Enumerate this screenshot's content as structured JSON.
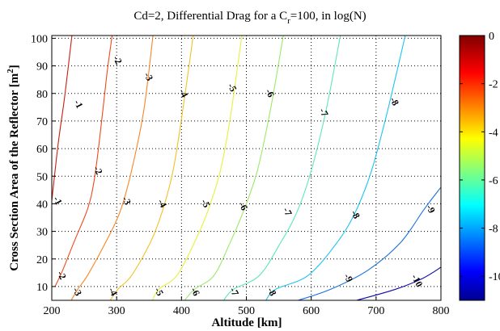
{
  "chart_data": {
    "type": "contour",
    "title": {
      "main": "Cd=2, Differential Drag for a C",
      "sub": "r",
      "rest": "=100, in log(N)"
    },
    "xlabel": "Altitude [km]",
    "ylabel": {
      "main": "Cross Section Area of the Reflector [m",
      "sup": "2",
      "end": "]"
    },
    "xlim": [
      200,
      800
    ],
    "ylim": [
      5,
      101
    ],
    "xticks": [
      200,
      300,
      400,
      500,
      600,
      700,
      800
    ],
    "yticks": [
      10,
      20,
      30,
      40,
      50,
      60,
      70,
      80,
      90,
      100
    ],
    "grid": true,
    "colormap": "jet",
    "colorbar": {
      "range": [
        -11,
        0
      ],
      "ticks": [
        0,
        -2,
        -4,
        -6,
        -8,
        -10
      ]
    },
    "series": [
      {
        "level": -1,
        "color": "#c81e0f",
        "points": [
          [
            200,
            41
          ],
          [
            210,
            62
          ],
          [
            220,
            79
          ],
          [
            231,
            101
          ]
        ],
        "labels": [
          {
            "text": "-1",
            "x": 208,
            "y": 41
          },
          {
            "text": "-1",
            "x": 240,
            "y": 76
          }
        ]
      },
      {
        "level": -2,
        "color": "#ee4a1d",
        "points": [
          [
            205,
            10
          ],
          [
            217,
            16
          ],
          [
            234,
            26
          ],
          [
            255,
            38
          ],
          [
            265,
            48
          ],
          [
            274,
            64
          ],
          [
            285,
            87
          ],
          [
            293,
            101
          ]
        ],
        "labels": [
          {
            "text": "-2",
            "x": 214,
            "y": 14
          },
          {
            "text": "-2",
            "x": 270,
            "y": 52
          },
          {
            "text": "-2",
            "x": 300,
            "y": 92
          }
        ]
      },
      {
        "level": -3,
        "color": "#f98524",
        "points": [
          [
            230,
            5
          ],
          [
            240,
            9
          ],
          [
            255,
            14
          ],
          [
            283,
            26
          ],
          [
            305,
            37
          ],
          [
            323,
            52
          ],
          [
            342,
            74
          ],
          [
            356,
            101
          ]
        ],
        "labels": [
          {
            "text": "-3",
            "x": 238,
            "y": 8
          },
          {
            "text": "-3",
            "x": 314,
            "y": 41
          },
          {
            "text": "-3",
            "x": 348,
            "y": 86
          }
        ]
      },
      {
        "level": -4,
        "color": "#f1c226",
        "points": [
          [
            290,
            5
          ],
          [
            302,
            9
          ],
          [
            323,
            14
          ],
          [
            352,
            26
          ],
          [
            370,
            37
          ],
          [
            387,
            52
          ],
          [
            402,
            74
          ],
          [
            418,
            101
          ]
        ],
        "labels": [
          {
            "text": "-4",
            "x": 293,
            "y": 8
          },
          {
            "text": "-4",
            "x": 369,
            "y": 40
          },
          {
            "text": "-4",
            "x": 402,
            "y": 80
          }
        ]
      },
      {
        "level": -5,
        "color": "#e7f03d",
        "points": [
          [
            355,
            5
          ],
          [
            365,
            9
          ],
          [
            393,
            14
          ],
          [
            420,
            26
          ],
          [
            440,
            37
          ],
          [
            460,
            52
          ],
          [
            475,
            71
          ],
          [
            493,
            101
          ]
        ],
        "labels": [
          {
            "text": "-5",
            "x": 364,
            "y": 8
          },
          {
            "text": "-5",
            "x": 436,
            "y": 40
          },
          {
            "text": "-5",
            "x": 477,
            "y": 82
          }
        ]
      },
      {
        "level": -6,
        "color": "#9ce869",
        "points": [
          [
            405,
            5
          ],
          [
            420,
            9
          ],
          [
            450,
            14
          ],
          [
            475,
            26
          ],
          [
            495,
            37
          ],
          [
            517,
            52
          ],
          [
            537,
            74
          ],
          [
            557,
            101
          ]
        ],
        "labels": [
          {
            "text": "-6",
            "x": 420,
            "y": 8
          },
          {
            "text": "-6",
            "x": 494,
            "y": 39
          },
          {
            "text": "-6",
            "x": 535,
            "y": 80
          }
        ]
      },
      {
        "level": -7,
        "color": "#5ee6be",
        "points": [
          [
            465,
            5
          ],
          [
            480,
            9
          ],
          [
            520,
            14
          ],
          [
            553,
            26
          ],
          [
            578,
            37
          ],
          [
            600,
            52
          ],
          [
            623,
            74
          ],
          [
            645,
            101
          ]
        ],
        "labels": [
          {
            "text": "-7",
            "x": 480,
            "y": 8
          },
          {
            "text": "-7",
            "x": 562,
            "y": 37
          },
          {
            "text": "-7",
            "x": 618,
            "y": 73
          }
        ]
      },
      {
        "level": -8,
        "color": "#1cc4ef",
        "points": [
          [
            530,
            5
          ],
          [
            545,
            9
          ],
          [
            595,
            14
          ],
          [
            640,
            26
          ],
          [
            668,
            37
          ],
          [
            693,
            52
          ],
          [
            718,
            74
          ],
          [
            745,
            101
          ]
        ],
        "labels": [
          {
            "text": "-8",
            "x": 538,
            "y": 8
          },
          {
            "text": "-8",
            "x": 667,
            "y": 36
          },
          {
            "text": "-8",
            "x": 727,
            "y": 77
          }
        ]
      },
      {
        "level": -9,
        "color": "#1971e0",
        "points": [
          [
            580,
            5
          ],
          [
            630,
            9
          ],
          [
            688,
            16
          ],
          [
            738,
            26
          ],
          [
            774,
            38
          ],
          [
            800,
            46
          ]
        ],
        "labels": [
          {
            "text": "-9",
            "x": 656,
            "y": 13
          },
          {
            "text": "-9",
            "x": 783,
            "y": 38
          }
        ]
      },
      {
        "level": -10,
        "color": "#0c0aaf",
        "points": [
          [
            670,
            5
          ],
          [
            730,
            9
          ],
          [
            772,
            13
          ],
          [
            800,
            17
          ]
        ],
        "labels": [
          {
            "text": "-10",
            "x": 762,
            "y": 12
          }
        ]
      }
    ]
  }
}
